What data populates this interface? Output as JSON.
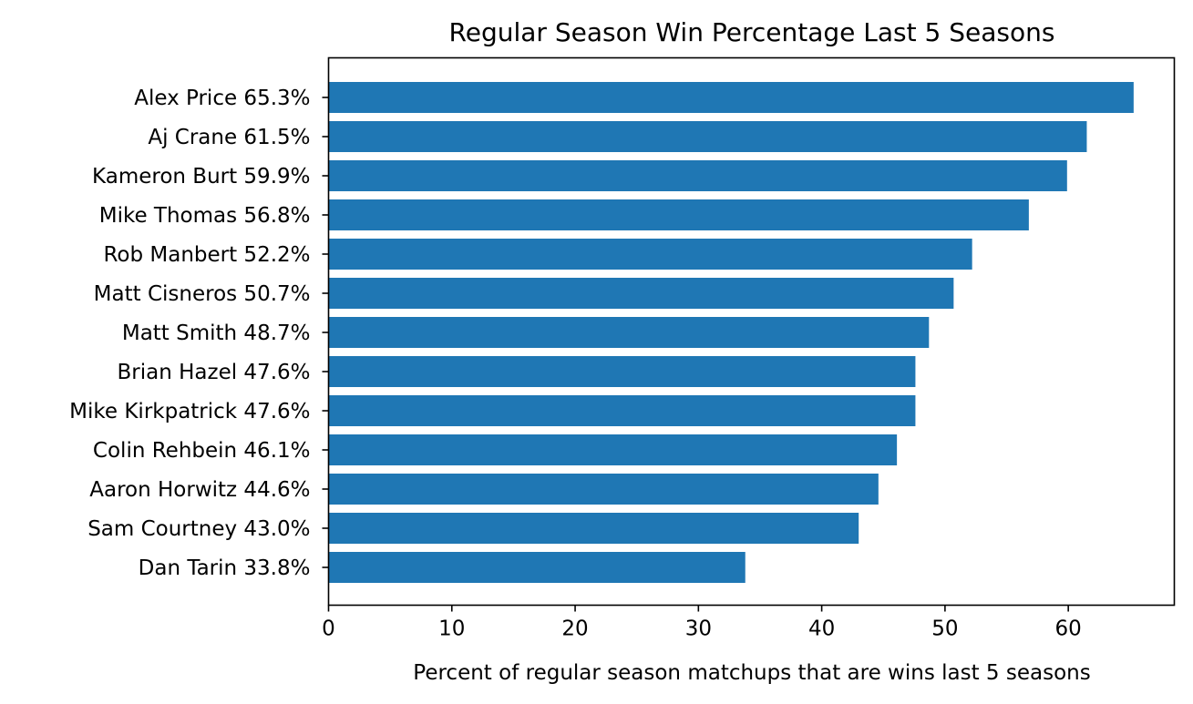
{
  "chart_data": {
    "type": "bar",
    "orientation": "horizontal",
    "title": "Regular Season Win Percentage Last 5 Seasons",
    "xlabel": "Percent of regular season matchups that are wins last 5 seasons",
    "ylabel": "",
    "categories": [
      "Alex Price 65.3%",
      "Aj Crane 61.5%",
      "Kameron Burt 59.9%",
      "Mike Thomas 56.8%",
      "Rob Manbert 52.2%",
      "Matt Cisneros 50.7%",
      "Matt Smith 48.7%",
      "Brian Hazel 47.6%",
      "Mike Kirkpatrick 47.6%",
      "Colin Rehbein 46.1%",
      "Aaron Horwitz 44.6%",
      "Sam Courtney 43.0%",
      "Dan Tarin 33.8%"
    ],
    "values": [
      65.3,
      61.5,
      59.9,
      56.8,
      52.2,
      50.7,
      48.7,
      47.6,
      47.6,
      46.1,
      44.6,
      43.0,
      33.8
    ],
    "xlim": [
      0,
      68.6
    ],
    "xticks": [
      0,
      10,
      20,
      30,
      40,
      50,
      60
    ],
    "bar_color": "#1f77b4",
    "grid": false
  }
}
